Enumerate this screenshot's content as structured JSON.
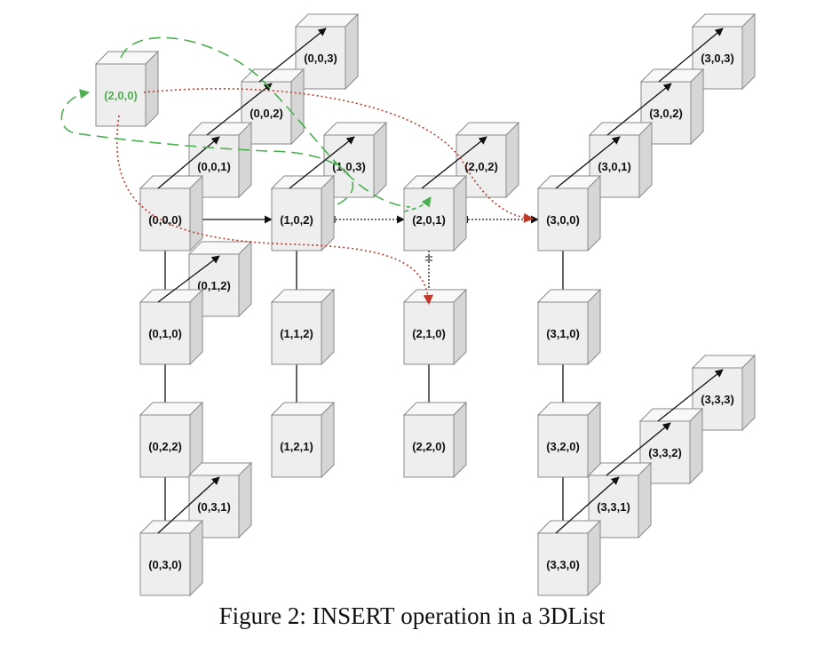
{
  "nodes": [
    {
      "id": "000",
      "label": "(0,0,0)"
    },
    {
      "id": "001",
      "label": "(0,0,1)"
    },
    {
      "id": "002",
      "label": "(0,0,2)"
    },
    {
      "id": "003",
      "label": "(0,0,3)"
    },
    {
      "id": "010",
      "label": "(0,1,0)"
    },
    {
      "id": "012",
      "label": "(0,1,2)"
    },
    {
      "id": "022",
      "label": "(0,2,2)"
    },
    {
      "id": "030",
      "label": "(0,3,0)"
    },
    {
      "id": "031",
      "label": "(0,3,1)"
    },
    {
      "id": "102",
      "label": "(1,0,2)"
    },
    {
      "id": "103",
      "label": "(1,0,3)"
    },
    {
      "id": "112",
      "label": "(1,1,2)"
    },
    {
      "id": "121",
      "label": "(1,2,1)"
    },
    {
      "id": "200",
      "label": "(2,0,0)",
      "highlight": true
    },
    {
      "id": "201",
      "label": "(2,0,1)"
    },
    {
      "id": "202",
      "label": "(2,0,2)"
    },
    {
      "id": "210",
      "label": "(2,1,0)"
    },
    {
      "id": "220",
      "label": "(2,2,0)"
    },
    {
      "id": "300",
      "label": "(3,0,0)"
    },
    {
      "id": "301",
      "label": "(3,0,1)"
    },
    {
      "id": "302",
      "label": "(3,0,2)"
    },
    {
      "id": "303",
      "label": "(3,0,3)"
    },
    {
      "id": "310",
      "label": "(3,1,0)"
    },
    {
      "id": "320",
      "label": "(3,2,0)"
    },
    {
      "id": "330",
      "label": "(3,3,0)"
    },
    {
      "id": "331",
      "label": "(3,3,1)"
    },
    {
      "id": "332",
      "label": "(3,3,2)"
    },
    {
      "id": "333",
      "label": "(3,3,3)"
    }
  ],
  "edges": [
    {
      "from": "000",
      "to": "001",
      "style": "solid"
    },
    {
      "from": "001",
      "to": "002",
      "style": "solid"
    },
    {
      "from": "002",
      "to": "003",
      "style": "solid"
    },
    {
      "from": "000",
      "to": "102",
      "style": "solid"
    },
    {
      "from": "000",
      "to": "010",
      "style": "solid"
    },
    {
      "from": "010",
      "to": "012",
      "style": "solid"
    },
    {
      "from": "010",
      "to": "022",
      "style": "solid"
    },
    {
      "from": "022",
      "to": "030",
      "style": "solid"
    },
    {
      "from": "030",
      "to": "031",
      "style": "solid"
    },
    {
      "from": "102",
      "to": "103",
      "style": "solid"
    },
    {
      "from": "102",
      "to": "112",
      "style": "solid"
    },
    {
      "from": "112",
      "to": "121",
      "style": "solid"
    },
    {
      "from": "102",
      "to": "201",
      "style": "broken"
    },
    {
      "from": "201",
      "to": "202",
      "style": "solid"
    },
    {
      "from": "201",
      "to": "300",
      "style": "broken"
    },
    {
      "from": "201",
      "to": "210",
      "style": "broken"
    },
    {
      "from": "210",
      "to": "220",
      "style": "solid"
    },
    {
      "from": "300",
      "to": "301",
      "style": "solid"
    },
    {
      "from": "301",
      "to": "302",
      "style": "solid"
    },
    {
      "from": "302",
      "to": "303",
      "style": "solid"
    },
    {
      "from": "300",
      "to": "310",
      "style": "solid"
    },
    {
      "from": "310",
      "to": "320",
      "style": "solid"
    },
    {
      "from": "320",
      "to": "330",
      "style": "solid"
    },
    {
      "from": "330",
      "to": "331",
      "style": "solid"
    },
    {
      "from": "331",
      "to": "332",
      "style": "solid"
    },
    {
      "from": "332",
      "to": "333",
      "style": "solid"
    }
  ],
  "colors": {
    "box_front": "#eeeeee",
    "box_top": "#f8f8f8",
    "box_side": "#d6d6d6",
    "box_stroke": "#8a8a8a",
    "arrow": "#111111",
    "highlight": "#4caf50",
    "red_dotted": "#c0392b",
    "green_dashed": "#4caf50"
  },
  "caption": {
    "prefix": "Figure 2: I",
    "smallcaps": "NSERT",
    "suffix": " operation in a 3DList"
  }
}
